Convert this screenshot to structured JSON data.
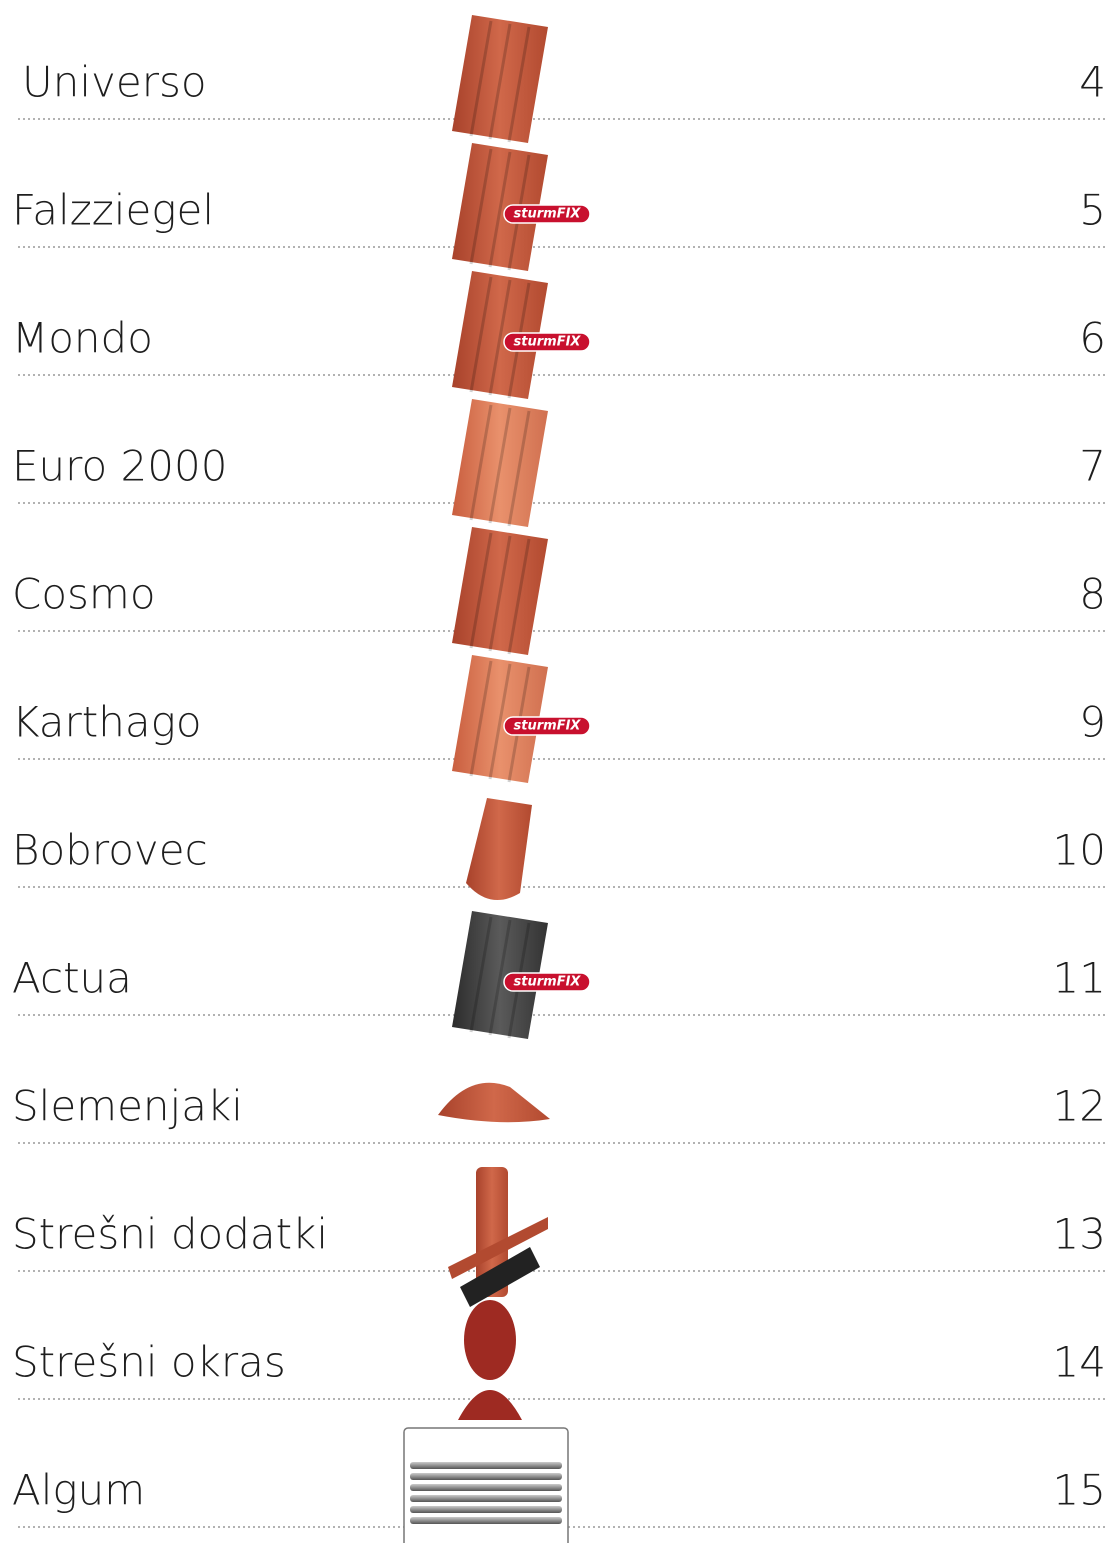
{
  "items": [
    {
      "label": "Universo",
      "page": 4
    },
    {
      "label": "Falzziegel",
      "page": 5,
      "badge": "sturmFIX"
    },
    {
      "label": "Mondo",
      "page": 6,
      "badge": "sturmFIX"
    },
    {
      "label": "Euro 2000",
      "page": 7
    },
    {
      "label": "Cosmo",
      "page": 8
    },
    {
      "label": "Karthago",
      "page": 9,
      "badge": "sturmFIX"
    },
    {
      "label": "Bobrovec",
      "page": 10
    },
    {
      "label": "Actua",
      "page": 11,
      "badge": "sturmFIX"
    },
    {
      "label": "Slemenjaki",
      "page": 12
    },
    {
      "label": "Strešni dodatki",
      "page": 13
    },
    {
      "label": "Strešni okras",
      "page": 14
    },
    {
      "label": "Algum",
      "page": 15
    }
  ]
}
